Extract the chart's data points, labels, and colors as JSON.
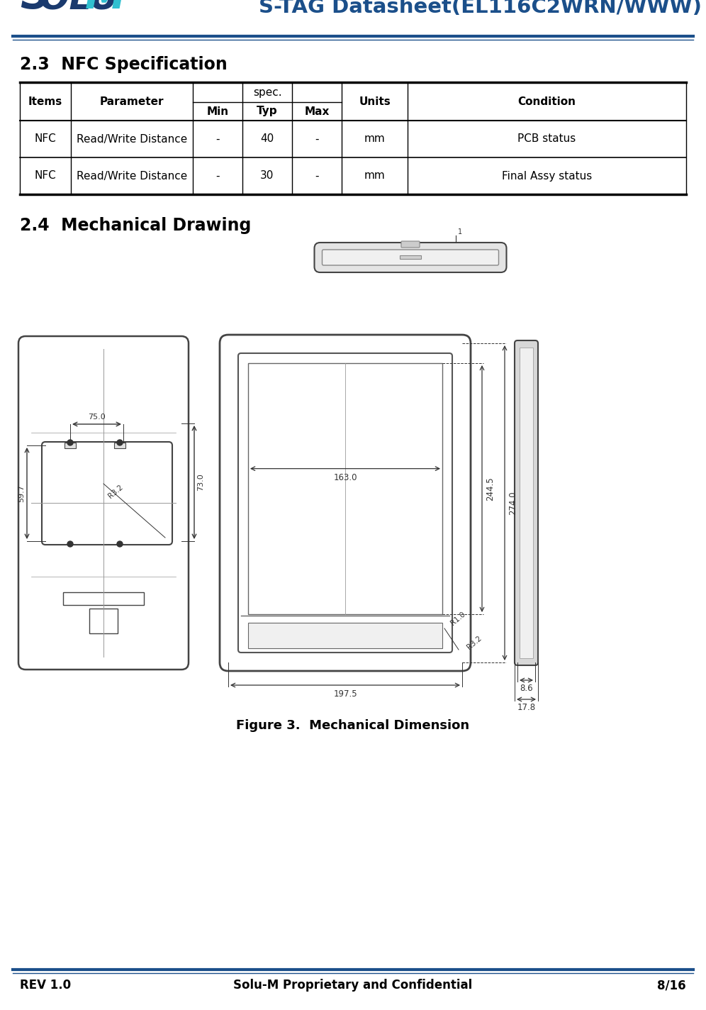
{
  "title": "S-TAG Datasheet(EL116C2WRN/WWW)",
  "title_color": "#1b4f8a",
  "bg_color": "#ffffff",
  "header_line_color": "#1b4f8a",
  "section1_title": "2.3  NFC Specification",
  "section2_title": "2.4  Mechanical Drawing",
  "figure_caption": "Figure 3.  Mechanical Dimension",
  "table_rows": [
    [
      "NFC",
      "Read/Write Distance",
      "-",
      "40",
      "-",
      "mm",
      "PCB status"
    ],
    [
      "NFC",
      "Read/Write Distance",
      "-",
      "30",
      "-",
      "mm",
      "Final Assy status"
    ]
  ],
  "footer_left": "REV 1.0",
  "footer_center": "Solu-M Proprietary and Confidential",
  "footer_right": "8/16",
  "dim_color": "#333333",
  "outline_color": "#444444",
  "grid_color": "#999999"
}
